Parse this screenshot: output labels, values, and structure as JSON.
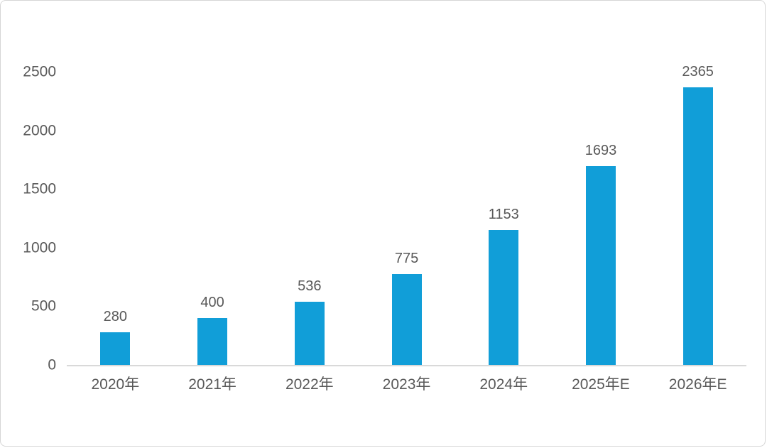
{
  "chart_data": {
    "type": "bar",
    "title": "",
    "xlabel": "",
    "ylabel": "",
    "categories": [
      "2020年",
      "2021年",
      "2022年",
      "2023年",
      "2024年",
      "2025年E",
      "2026年E"
    ],
    "values": [
      280,
      400,
      536,
      775,
      1153,
      1693,
      2365
    ],
    "data_labels": [
      "280",
      "400",
      "536",
      "775",
      "1153",
      "1693",
      "2365"
    ],
    "ylim": [
      0,
      2500
    ],
    "yticks": [
      0,
      500,
      1000,
      1500,
      2000,
      2500
    ],
    "grid": false,
    "legend_position": "none",
    "bar_color": "#119ED8",
    "axis_line_color": "#d9d9d9",
    "tick_label_color": "#595959",
    "data_label_color": "#595959",
    "background_color": "#ffffff"
  }
}
